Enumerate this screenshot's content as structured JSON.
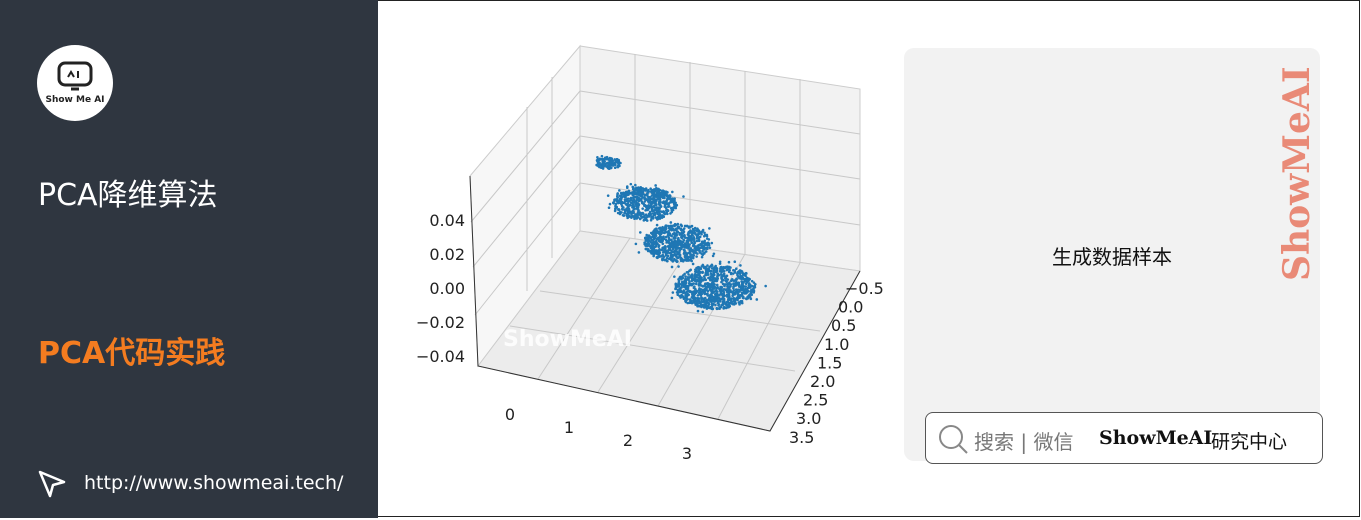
{
  "sidebar": {
    "logo": "Show Me AI",
    "title": "PCA降维算法",
    "subtitle": "PCA代码实践",
    "url": "http://www.showmeai.tech/"
  },
  "plot": {
    "z_ticks": [
      "0.04",
      "0.02",
      "0.00",
      "−0.02",
      "−0.04"
    ],
    "x_ticks": [
      "0",
      "1",
      "2",
      "3"
    ],
    "y_ticks": [
      "−0.5",
      "0.0",
      "0.5",
      "1.0",
      "1.5",
      "2.0",
      "2.5",
      "3.0",
      "3.5"
    ],
    "watermark": "ShowMeAI"
  },
  "panel": {
    "caption": "生成数据样本",
    "search": "搜索 | 微信",
    "brand": "ShowMeAI",
    "brand_suffix": "研究中心",
    "watermark": "ShowMeAI"
  }
}
